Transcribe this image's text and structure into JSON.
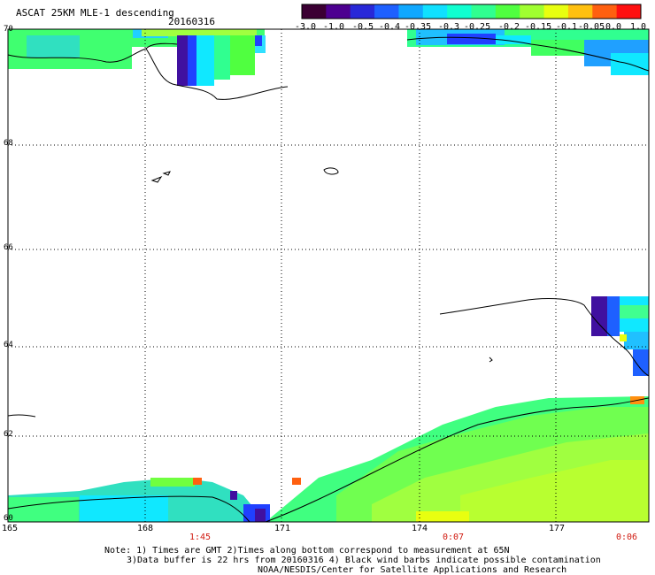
{
  "header": {
    "title": "ASCAT 25KM MLE-1 descending",
    "date": "20160316"
  },
  "colorbar": {
    "colors": [
      "#3b0033",
      "#4d0090",
      "#2828d8",
      "#1e60ff",
      "#10a8ff",
      "#10e0ff",
      "#10ffd0",
      "#30ff90",
      "#50ff40",
      "#a0ff30",
      "#e8ff10",
      "#ffc010",
      "#ff6010",
      "#ff1010"
    ],
    "labels": [
      "-3.0",
      "-1.0",
      "-0.5",
      "-0.4",
      "-0.35",
      "-0.3",
      "-0.25",
      "-0.2",
      "-0.15",
      "-0.1",
      "-0.05",
      "0.0",
      "1.0"
    ]
  },
  "axes": {
    "lon_labels": [
      "165",
      "168",
      "171",
      "174",
      "177"
    ],
    "lat_labels": [
      "70",
      "68",
      "66",
      "64",
      "62",
      "60"
    ]
  },
  "times": [
    "1:45",
    "0:07",
    "0:06"
  ],
  "notes": {
    "line1": "Note: 1) Times are GMT 2)Times along bottom correspond to measurement at 65N",
    "line2": "3)Data buffer is 22 hrs from 20160316 4) Black wind barbs indicate possible contamination",
    "line3": "NOAA/NESDIS/Center for Satellite Applications and Research"
  }
}
